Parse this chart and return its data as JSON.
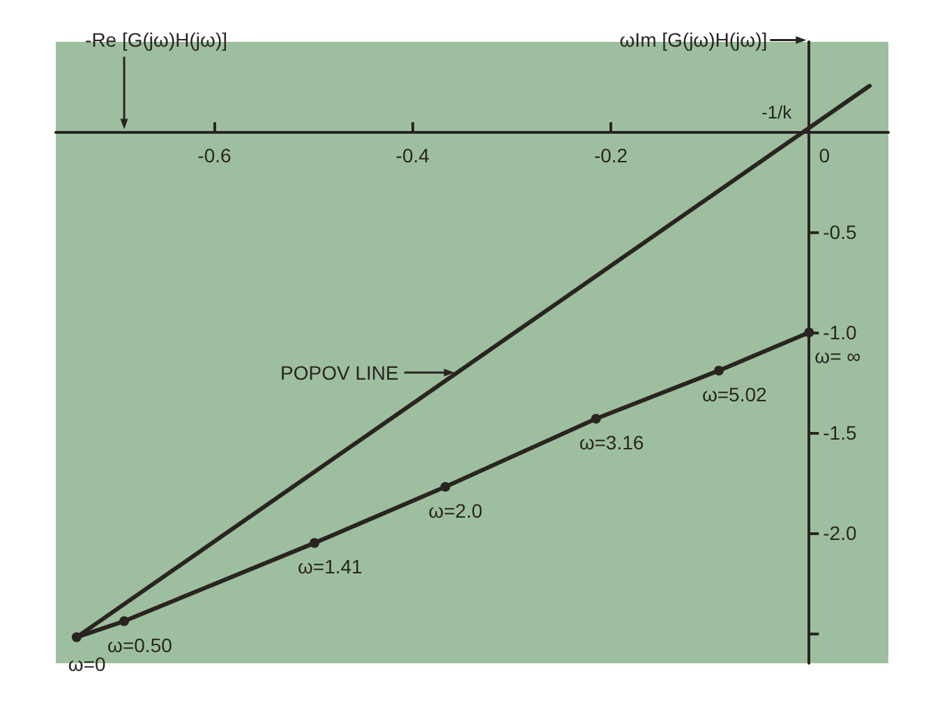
{
  "chart_data": {
    "type": "line",
    "xlabel": "-Re [G(jω)H(jω)]",
    "ylabel": "ωIm [G(jω)H(jω)]",
    "xlim": [
      -0.76,
      0.08
    ],
    "ylim": [
      -2.65,
      0.45
    ],
    "xticks": [
      -0.6,
      -0.4,
      -0.2,
      0
    ],
    "yticks": [
      -0.5,
      {
        "value": -1.0,
        "label": "-1.0"
      },
      -1.5,
      {
        "value": -2.0,
        "label": "-2.0"
      },
      {
        "value": -2.5,
        "label": null
      }
    ],
    "series": [
      {
        "color": "#2a2420",
        "marker": "circle",
        "x": [
          -0.739,
          -0.691,
          -0.499,
          -0.367,
          -0.215,
          -0.091,
          0
        ],
        "values": [
          -2.52,
          -2.44,
          -2.05,
          -1.77,
          -1.43,
          -1.19,
          -1.0
        ]
      },
      {
        "color": "#2a2420",
        "marker": "none",
        "x": [
          -0.739,
          0.061
        ],
        "values": [
          -2.52,
          0.23
        ]
      }
    ],
    "annotations": [
      {
        "text": "ω=0",
        "x": -0.739,
        "y": -2.52
      },
      {
        "text": "ω=0.50",
        "x": -0.691,
        "y": -2.44
      },
      {
        "text": "ω=1.41",
        "x": -0.499,
        "y": -2.05
      },
      {
        "text": "ω=2.0",
        "x": -0.367,
        "y": -1.77
      },
      {
        "text": "ω=3.16",
        "x": -0.215,
        "y": -1.43
      },
      {
        "text": "ω=5.02",
        "x": -0.091,
        "y": -1.19
      },
      {
        "text": "ω= ∞",
        "x": 0,
        "y": -1.0
      },
      {
        "text": "-1/k",
        "x": -0.012,
        "y": 0
      },
      "POPOV LINE"
    ]
  }
}
